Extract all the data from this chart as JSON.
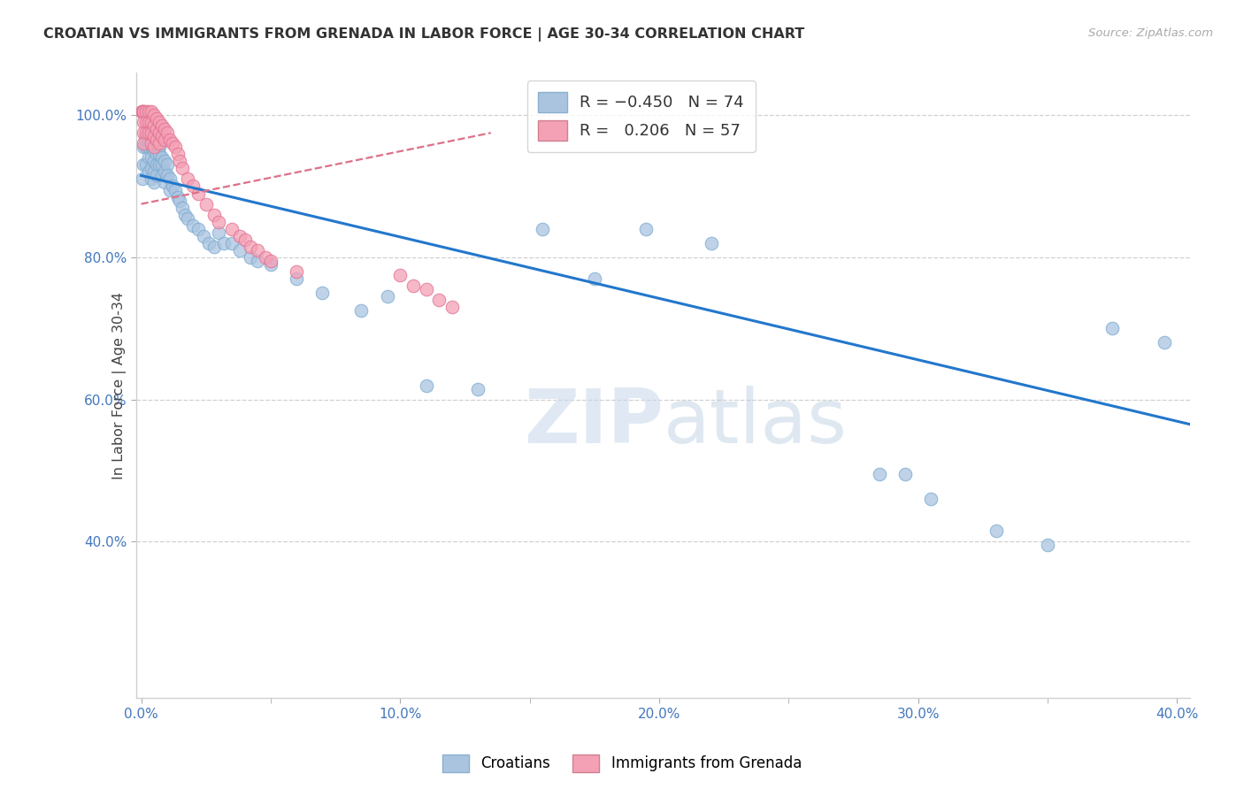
{
  "title": "CROATIAN VS IMMIGRANTS FROM GRENADA IN LABOR FORCE | AGE 30-34 CORRELATION CHART",
  "source_text": "Source: ZipAtlas.com",
  "ylabel": "In Labor Force | Age 30-34",
  "legend_label_blue": "Croatians",
  "legend_label_pink": "Immigrants from Grenada",
  "R_blue": -0.45,
  "N_blue": 74,
  "R_pink": 0.206,
  "N_pink": 57,
  "xlim": [
    -0.002,
    0.405
  ],
  "ylim": [
    0.18,
    1.06
  ],
  "xtick_labels": [
    "0.0%",
    "",
    "10.0%",
    "",
    "20.0%",
    "",
    "30.0%",
    "",
    "40.0%"
  ],
  "xtick_vals": [
    0.0,
    0.05,
    0.1,
    0.15,
    0.2,
    0.25,
    0.3,
    0.35,
    0.4
  ],
  "ytick_labels": [
    "40.0%",
    "60.0%",
    "80.0%",
    "100.0%"
  ],
  "ytick_vals": [
    0.4,
    0.6,
    0.8,
    1.0
  ],
  "blue_color": "#aac4e0",
  "pink_color": "#f4a0b5",
  "blue_edge_color": "#7aaad0",
  "pink_edge_color": "#e07090",
  "blue_line_color": "#2277cc",
  "pink_line_color": "#dd7088",
  "watermark_color": "#ccd8e8",
  "blue_trendline_x": [
    0.0,
    0.405
  ],
  "blue_trendline_y": [
    0.915,
    0.565
  ],
  "pink_trendline_x": [
    0.0,
    0.135
  ],
  "pink_trendline_y": [
    0.875,
    0.975
  ],
  "blue_x": [
    0.0005,
    0.001,
    0.001,
    0.0015,
    0.002,
    0.002,
    0.002,
    0.003,
    0.003,
    0.003,
    0.003,
    0.004,
    0.004,
    0.004,
    0.004,
    0.004,
    0.005,
    0.005,
    0.005,
    0.005,
    0.005,
    0.006,
    0.006,
    0.006,
    0.006,
    0.007,
    0.007,
    0.007,
    0.008,
    0.008,
    0.008,
    0.009,
    0.009,
    0.009,
    0.01,
    0.01,
    0.011,
    0.011,
    0.012,
    0.013,
    0.014,
    0.015,
    0.016,
    0.017,
    0.018,
    0.02,
    0.022,
    0.024,
    0.026,
    0.028,
    0.03,
    0.032,
    0.035,
    0.038,
    0.042,
    0.045,
    0.05,
    0.06,
    0.07,
    0.085,
    0.095,
    0.11,
    0.13,
    0.155,
    0.175,
    0.195,
    0.22,
    0.285,
    0.295,
    0.305,
    0.33,
    0.35,
    0.375,
    0.395
  ],
  "blue_y": [
    0.91,
    0.955,
    0.93,
    0.965,
    0.97,
    0.955,
    0.93,
    0.965,
    0.955,
    0.94,
    0.92,
    0.97,
    0.955,
    0.94,
    0.925,
    0.91,
    0.965,
    0.95,
    0.935,
    0.92,
    0.905,
    0.96,
    0.945,
    0.93,
    0.915,
    0.955,
    0.945,
    0.93,
    0.94,
    0.93,
    0.915,
    0.935,
    0.92,
    0.905,
    0.93,
    0.915,
    0.91,
    0.895,
    0.9,
    0.895,
    0.885,
    0.88,
    0.87,
    0.86,
    0.855,
    0.845,
    0.84,
    0.83,
    0.82,
    0.815,
    0.835,
    0.82,
    0.82,
    0.81,
    0.8,
    0.795,
    0.79,
    0.77,
    0.75,
    0.725,
    0.745,
    0.62,
    0.615,
    0.84,
    0.77,
    0.84,
    0.82,
    0.495,
    0.495,
    0.46,
    0.415,
    0.395,
    0.7,
    0.68
  ],
  "pink_x": [
    0.0003,
    0.0005,
    0.001,
    0.001,
    0.001,
    0.001,
    0.001,
    0.002,
    0.002,
    0.002,
    0.003,
    0.003,
    0.003,
    0.004,
    0.004,
    0.004,
    0.004,
    0.005,
    0.005,
    0.005,
    0.005,
    0.006,
    0.006,
    0.006,
    0.007,
    0.007,
    0.007,
    0.008,
    0.008,
    0.009,
    0.009,
    0.01,
    0.011,
    0.012,
    0.013,
    0.014,
    0.015,
    0.016,
    0.018,
    0.02,
    0.022,
    0.025,
    0.028,
    0.03,
    0.035,
    0.038,
    0.04,
    0.042,
    0.045,
    0.048,
    0.05,
    0.06,
    0.1,
    0.105,
    0.11,
    0.115,
    0.12
  ],
  "pink_y": [
    1.005,
    1.005,
    1.005,
    1.005,
    0.99,
    0.975,
    0.96,
    1.005,
    0.99,
    0.975,
    1.005,
    0.99,
    0.975,
    1.005,
    0.99,
    0.975,
    0.96,
    1.0,
    0.985,
    0.97,
    0.955,
    0.995,
    0.98,
    0.965,
    0.99,
    0.975,
    0.96,
    0.985,
    0.97,
    0.98,
    0.965,
    0.975,
    0.965,
    0.96,
    0.955,
    0.945,
    0.935,
    0.925,
    0.91,
    0.9,
    0.89,
    0.875,
    0.86,
    0.85,
    0.84,
    0.83,
    0.825,
    0.815,
    0.81,
    0.8,
    0.795,
    0.78,
    0.775,
    0.76,
    0.755,
    0.74,
    0.73
  ],
  "background_color": "#ffffff",
  "grid_color": "#d0d0d0",
  "spine_color": "#d0d0d0"
}
